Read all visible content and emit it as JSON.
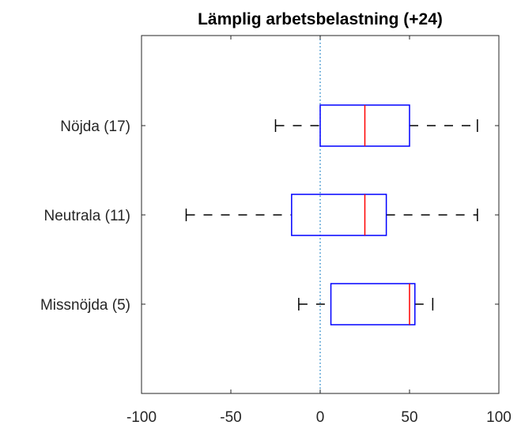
{
  "chart_data": {
    "type": "boxplot",
    "orientation": "horizontal",
    "title": "Lämplig arbetsbelastning (+24)",
    "xlabel": "",
    "ylabel": "",
    "xlim": [
      -100,
      100
    ],
    "xticks": [
      "-100",
      "-50",
      "0",
      "50",
      "100"
    ],
    "xtick_values": [
      -100,
      -50,
      0,
      50,
      100
    ],
    "grid": false,
    "reference_line": {
      "x": 0,
      "style": "dotted",
      "color": "#0072bd"
    },
    "categories": [
      "Nöjda (17)",
      "Neutrala (11)",
      "Missnöjda (5)"
    ],
    "boxes": [
      {
        "label": "Nöjda (17)",
        "whisker_low": -25,
        "q1": 0,
        "median": 25,
        "q3": 50,
        "whisker_high": 88
      },
      {
        "label": "Neutrala (11)",
        "whisker_low": -75,
        "q1": -16,
        "median": 25,
        "q3": 37,
        "whisker_high": 88
      },
      {
        "label": "Missnöjda (5)",
        "whisker_low": -12,
        "q1": 6,
        "median": 50,
        "q3": 53,
        "whisker_high": 63
      }
    ],
    "colors": {
      "box": "#0000ff",
      "median": "#ff0000",
      "whisker": "#000000",
      "axes": "#262626"
    }
  }
}
